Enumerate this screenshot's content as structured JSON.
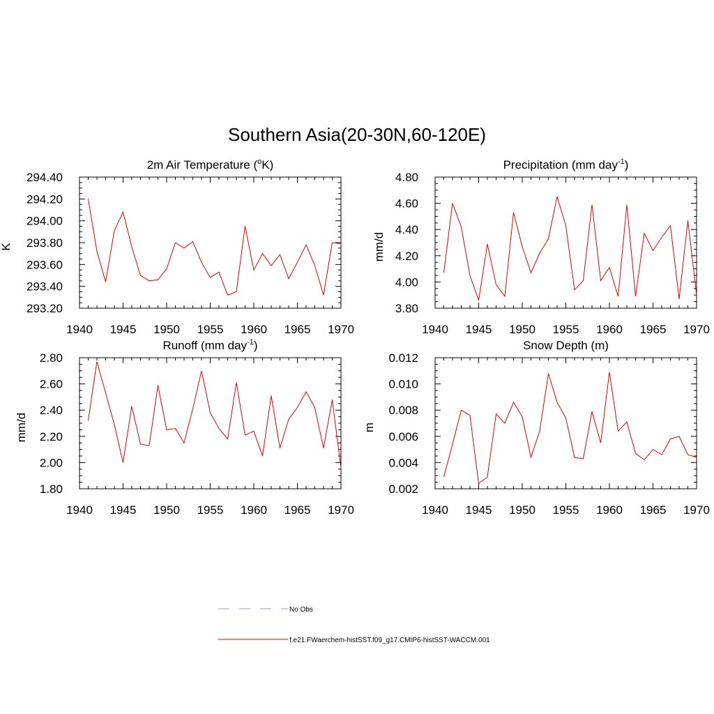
{
  "figure": {
    "title": "Southern Asia(20-30N,60-120E)"
  },
  "colors": {
    "model_line": "#e00000",
    "obs_line": "#9999dd",
    "axis": "#000000"
  },
  "legend": {
    "obs_label": "No Obs",
    "model_label": "f.e21.FWaerchem-histSST.f09_g17.CMIP6-histSST-WACCM.001"
  },
  "chart_data": [
    {
      "type": "line",
      "title": "2m Air Temperature (",
      "title_sup": "o",
      "title_end": "K)",
      "ylabel": "K",
      "xlim": [
        1940,
        1970
      ],
      "ylim": [
        293.2,
        294.4
      ],
      "xticks": [
        1940,
        1945,
        1950,
        1955,
        1960,
        1965,
        1970
      ],
      "yticks": [
        "293.20",
        "293.40",
        "293.60",
        "293.80",
        "294.00",
        "294.20",
        "294.40"
      ],
      "x": [
        1941,
        1942,
        1943,
        1944,
        1945,
        1946,
        1947,
        1948,
        1949,
        1950,
        1951,
        1952,
        1953,
        1954,
        1955,
        1956,
        1957,
        1958,
        1959,
        1960,
        1961,
        1962,
        1963,
        1964,
        1965,
        1966,
        1967,
        1968,
        1969,
        1970
      ],
      "values": [
        294.2,
        293.72,
        293.44,
        293.91,
        294.08,
        293.76,
        293.5,
        293.45,
        293.46,
        293.56,
        293.8,
        293.75,
        293.81,
        293.62,
        293.48,
        293.53,
        293.32,
        293.35,
        293.95,
        293.55,
        293.7,
        293.59,
        293.69,
        293.47,
        293.62,
        293.78,
        293.59,
        293.32,
        293.8,
        293.79
      ]
    },
    {
      "type": "line",
      "title": "Precipitation (mm day",
      "title_sup": "-1",
      "title_end": ")",
      "ylabel": "mm/d",
      "xlim": [
        1940,
        1970
      ],
      "ylim": [
        3.8,
        4.8
      ],
      "xticks": [
        1940,
        1945,
        1950,
        1955,
        1960,
        1965,
        1970
      ],
      "yticks": [
        "3.80",
        "4.00",
        "4.20",
        "4.40",
        "4.60",
        "4.80"
      ],
      "x": [
        1941,
        1942,
        1943,
        1944,
        1945,
        1946,
        1947,
        1948,
        1949,
        1950,
        1951,
        1952,
        1953,
        1954,
        1955,
        1956,
        1957,
        1958,
        1959,
        1960,
        1961,
        1962,
        1963,
        1964,
        1965,
        1966,
        1967,
        1968,
        1969,
        1970
      ],
      "values": [
        4.07,
        4.6,
        4.42,
        4.05,
        3.86,
        4.29,
        3.98,
        3.89,
        4.53,
        4.27,
        4.07,
        4.22,
        4.33,
        4.65,
        4.43,
        3.94,
        4.01,
        4.59,
        4.01,
        4.11,
        3.89,
        4.59,
        3.89,
        4.37,
        4.24,
        4.34,
        4.43,
        3.87,
        4.47,
        3.9
      ]
    },
    {
      "type": "line",
      "title": "Runoff (mm day",
      "title_sup": "-1",
      "title_end": ")",
      "ylabel": "mm/d",
      "xlim": [
        1940,
        1970
      ],
      "ylim": [
        1.8,
        2.8
      ],
      "xticks": [
        1940,
        1945,
        1950,
        1955,
        1960,
        1965,
        1970
      ],
      "yticks": [
        "1.80",
        "2.00",
        "2.20",
        "2.40",
        "2.60",
        "2.80"
      ],
      "x": [
        1941,
        1942,
        1943,
        1944,
        1945,
        1946,
        1947,
        1948,
        1949,
        1950,
        1951,
        1952,
        1953,
        1954,
        1955,
        1956,
        1957,
        1958,
        1959,
        1960,
        1961,
        1962,
        1963,
        1964,
        1965,
        1966,
        1967,
        1968,
        1969,
        1970
      ],
      "values": [
        2.32,
        2.77,
        2.53,
        2.29,
        2.0,
        2.43,
        2.14,
        2.13,
        2.59,
        2.25,
        2.26,
        2.15,
        2.41,
        2.7,
        2.38,
        2.26,
        2.18,
        2.61,
        2.21,
        2.24,
        2.05,
        2.51,
        2.11,
        2.33,
        2.42,
        2.54,
        2.42,
        2.11,
        2.48,
        1.96
      ]
    },
    {
      "type": "line",
      "title": "Snow Depth (m)",
      "title_sup": "",
      "title_end": "",
      "ylabel": "m",
      "xlim": [
        1940,
        1970
      ],
      "ylim": [
        0.002,
        0.012
      ],
      "xticks": [
        1940,
        1945,
        1950,
        1955,
        1960,
        1965,
        1970
      ],
      "yticks": [
        "0.002",
        "0.004",
        "0.006",
        "0.008",
        "0.010",
        "0.012"
      ],
      "x": [
        1941,
        1942,
        1943,
        1944,
        1945,
        1946,
        1947,
        1948,
        1949,
        1950,
        1951,
        1952,
        1953,
        1954,
        1955,
        1956,
        1957,
        1958,
        1959,
        1960,
        1961,
        1962,
        1963,
        1964,
        1965,
        1966,
        1967,
        1968,
        1969,
        1970
      ],
      "values": [
        0.0029,
        0.0054,
        0.008,
        0.0076,
        0.0024,
        0.0029,
        0.0077,
        0.007,
        0.0086,
        0.0075,
        0.0044,
        0.0064,
        0.0108,
        0.0086,
        0.0074,
        0.0044,
        0.0043,
        0.0079,
        0.0055,
        0.0109,
        0.0064,
        0.0071,
        0.0047,
        0.0042,
        0.005,
        0.0046,
        0.0058,
        0.006,
        0.0046,
        0.0044
      ]
    }
  ]
}
